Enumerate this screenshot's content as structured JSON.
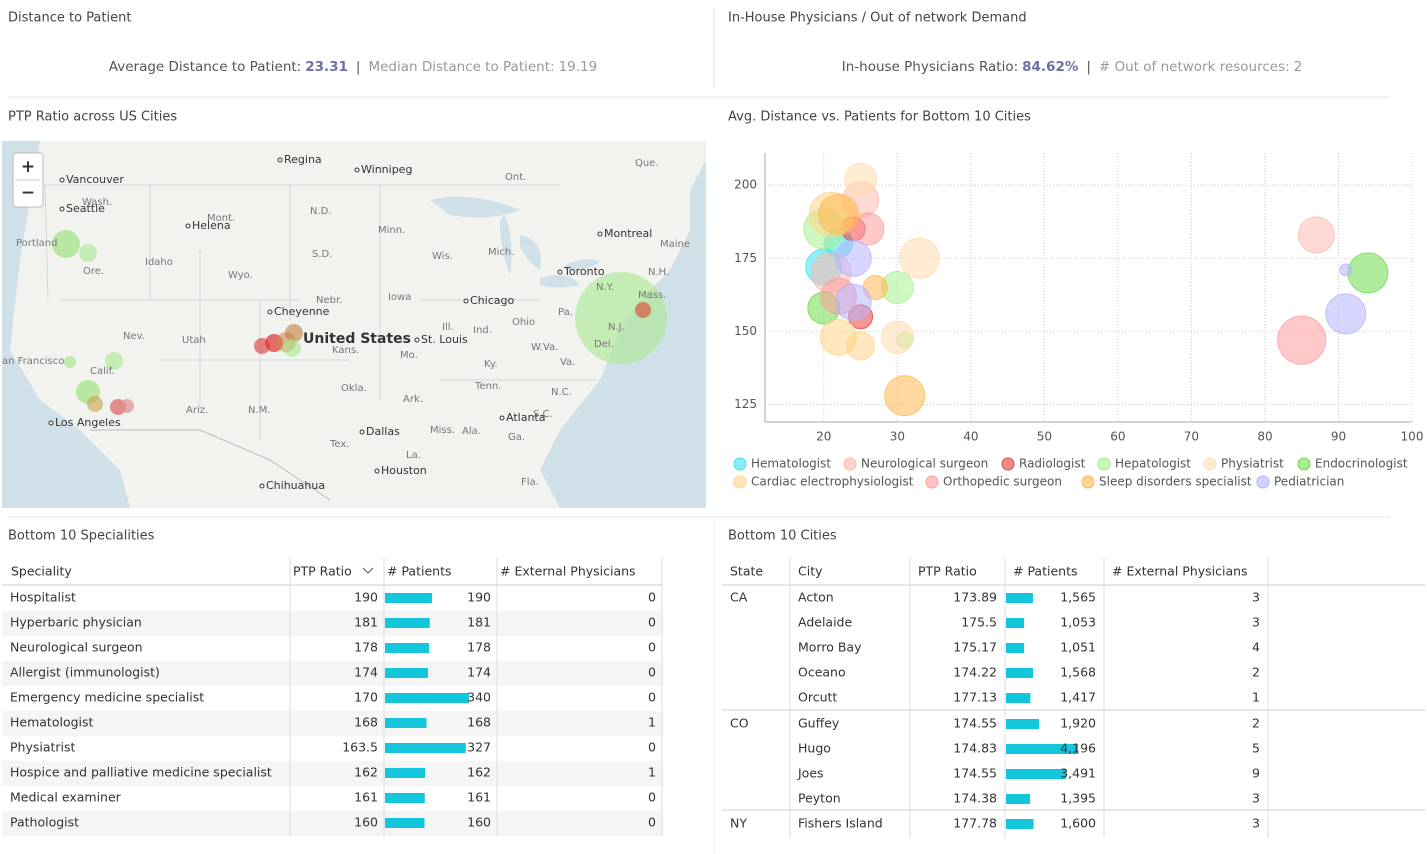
{
  "kpi": {
    "distance": {
      "title": "Distance to Patient",
      "avg_label": "Average Distance to Patient:",
      "avg": "23.31",
      "median_label": "Median Distance to Patient:",
      "median": "19.19"
    },
    "physicians": {
      "title": "In-House Physicians / Out of network Demand",
      "ratio_label": "In-house Physicians Ratio:",
      "ratio": "84.62%",
      "oon_label": "# Out of network resources:",
      "oon": "2"
    }
  },
  "map": {
    "title": "PTP Ratio across US Cities",
    "zoom_in": "+",
    "zoom_out": "−",
    "labels": [
      "Regina",
      "Winnipeg",
      "Que.",
      "Vancouver",
      "Seattle",
      "Wash.",
      "Ont.",
      "Helena",
      "Mont.",
      "N.D.",
      "Minn.",
      "Montreal",
      "Maine",
      "Portland",
      "Idaho",
      "Ore.",
      "S.D.",
      "Wis.",
      "Mich.",
      "Toronto",
      "N.H.",
      "Wyo.",
      "Cheyenne",
      "Nebr.",
      "Iowa",
      "Chicago",
      "N.Y.",
      "Mass.",
      "Nev.",
      "Utah",
      "United States",
      "Ill.",
      "Ind.",
      "Ohio",
      "Pa.",
      "N.J.",
      "Kans.",
      "St. Louis",
      "Mo.",
      "W.Va.",
      "Del.",
      "an Francisco",
      "Calif.",
      "Ky.",
      "Va.",
      "Okla.",
      "Tenn.",
      "N.C.",
      "Ariz.",
      "N.M.",
      "Ark.",
      "Atlanta",
      "S.C.",
      "Los Angeles",
      "Dallas",
      "Miss.",
      "Ala.",
      "Ga.",
      "Tex.",
      "La.",
      "Houston",
      "Chihuahua",
      "Fla."
    ]
  },
  "chart_data": {
    "type": "scatter",
    "title": "Avg. Distance vs. Patients for Bottom 10 Cities",
    "xlim": [
      12,
      100
    ],
    "xticks": [
      20,
      30,
      40,
      50,
      60,
      70,
      80,
      90,
      100
    ],
    "ylim": [
      119,
      211
    ],
    "yticks": [
      125,
      150,
      175,
      200
    ],
    "grid": true,
    "series": [
      {
        "name": "Hematologist",
        "color": "#3ee0ee",
        "x": [
          20,
          22
        ],
        "values": [
          172,
          180
        ],
        "sizes": [
          324,
          196
        ]
      },
      {
        "name": "Neurological surgeon",
        "color": "#ffb9b0",
        "x": [
          25,
          21,
          87
        ],
        "values": [
          195,
          170,
          183
        ],
        "sizes": [
          324,
          400,
          324
        ]
      },
      {
        "name": "Radiologist",
        "color": "#e84040",
        "x": [
          24,
          25
        ],
        "values": [
          185,
          155
        ],
        "sizes": [
          144,
          144
        ]
      },
      {
        "name": "Hepatologist",
        "color": "#a8f090",
        "x": [
          20,
          30,
          31
        ],
        "values": [
          185,
          165,
          147
        ],
        "sizes": [
          400,
          256,
          64
        ]
      },
      {
        "name": "Physiatrist",
        "color": "#ffdcae",
        "x": [
          25,
          33,
          30
        ],
        "values": [
          202,
          175,
          148
        ],
        "sizes": [
          256,
          400,
          256
        ]
      },
      {
        "name": "Endocrinologist",
        "color": "#6edc4a",
        "x": [
          94,
          20
        ],
        "values": [
          170,
          158
        ],
        "sizes": [
          400,
          256
        ]
      },
      {
        "name": "Cardiac electrophysiologist",
        "color": "#ffd58a",
        "x": [
          21,
          22,
          25
        ],
        "values": [
          190,
          148,
          145
        ],
        "sizes": [
          484,
          324,
          196
        ]
      },
      {
        "name": "Orthopedic surgeon",
        "color": "#ff9c9c",
        "x": [
          85,
          26,
          22
        ],
        "values": [
          147,
          185,
          162
        ],
        "sizes": [
          576,
          256,
          324
        ]
      },
      {
        "name": "Sleep disorders specialist",
        "color": "#ffb850",
        "x": [
          22,
          27,
          31
        ],
        "values": [
          190,
          165,
          128
        ],
        "sizes": [
          400,
          144,
          400
        ]
      },
      {
        "name": "Pediatrician",
        "color": "#b4b4ff",
        "x": [
          91,
          91,
          24,
          24
        ],
        "values": [
          156,
          171,
          175,
          160
        ],
        "sizes": [
          400,
          36,
          324,
          324
        ]
      }
    ]
  },
  "specialities": {
    "title": "Bottom 10 Specialities",
    "columns": [
      "Speciality",
      "PTP Ratio",
      "# Patients",
      "# External Physicians"
    ],
    "rows": [
      [
        "Hospitalist",
        190,
        190,
        0
      ],
      [
        "Hyperbaric physician",
        181,
        181,
        0
      ],
      [
        "Neurological surgeon",
        178,
        178,
        0
      ],
      [
        "Allergist (immunologist)",
        174,
        174,
        0
      ],
      [
        "Emergency medicine specialist",
        170,
        340,
        0
      ],
      [
        "Hematologist",
        168,
        168,
        1
      ],
      [
        "Physiatrist",
        163.5,
        327,
        0
      ],
      [
        "Hospice and palliative medicine specialist",
        162,
        162,
        1
      ],
      [
        "Medical examiner",
        161,
        161,
        0
      ],
      [
        "Pathologist",
        160,
        160,
        0
      ]
    ]
  },
  "cities": {
    "title": "Bottom 10 Cities",
    "columns": [
      "State",
      "City",
      "PTP Ratio",
      "# Patients",
      "# External Physicians"
    ],
    "groups": [
      {
        "state": "CA",
        "rows": [
          [
            "Acton",
            173.89,
            {
              "value": 1565,
              "label": "1,565"
            },
            3
          ],
          [
            "Adelaide",
            175.5,
            {
              "value": 1053,
              "label": "1,053"
            },
            3
          ],
          [
            "Morro Bay",
            175.17,
            {
              "value": 1051,
              "label": "1,051"
            },
            4
          ],
          [
            "Oceano",
            174.22,
            {
              "value": 1568,
              "label": "1,568"
            },
            2
          ],
          [
            "Orcutt",
            177.13,
            {
              "value": 1417,
              "label": "1,417"
            },
            1
          ]
        ]
      },
      {
        "state": "CO",
        "rows": [
          [
            "Guffey",
            174.55,
            {
              "value": 1920,
              "label": "1,920"
            },
            2
          ],
          [
            "Hugo",
            174.83,
            {
              "value": 4196,
              "label": "4,196"
            },
            5
          ],
          [
            "Joes",
            174.55,
            {
              "value": 3491,
              "label": "3,491"
            },
            9
          ],
          [
            "Peyton",
            174.38,
            {
              "value": 1395,
              "label": "1,395"
            },
            3
          ]
        ]
      },
      {
        "state": "NY",
        "rows": [
          [
            "Fishers Island",
            177.78,
            {
              "value": 1600,
              "label": "1,600"
            },
            3
          ]
        ]
      }
    ]
  }
}
